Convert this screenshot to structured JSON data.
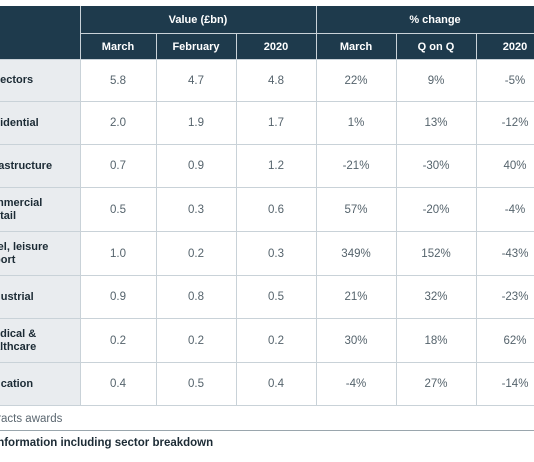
{
  "table": {
    "group_headers": {
      "value": "Value (£bn)",
      "change": "% change"
    },
    "sub_headers": [
      "March",
      "February",
      "2020",
      "March",
      "Q on Q",
      "2020"
    ],
    "rows": [
      {
        "sector": "sectors",
        "cells": [
          "5.8",
          "4.7",
          "4.8",
          "22%",
          "9%",
          "-5%"
        ]
      },
      {
        "sector": "sidential",
        "cells": [
          "2.0",
          "1.9",
          "1.7",
          "1%",
          "13%",
          "-12%"
        ]
      },
      {
        "sector": "rastructure",
        "cells": [
          "0.7",
          "0.9",
          "1.2",
          "-21%",
          "-30%",
          "40%"
        ]
      },
      {
        "sector": "mmercial\netail",
        "cells": [
          "0.5",
          "0.3",
          "0.6",
          "57%",
          "-20%",
          "-4%"
        ]
      },
      {
        "sector": "tel, leisure\nport",
        "cells": [
          "1.0",
          "0.2",
          "0.3",
          "349%",
          "152%",
          "-43%"
        ]
      },
      {
        "sector": "dustrial",
        "cells": [
          "0.9",
          "0.8",
          "0.5",
          "21%",
          "32%",
          "-23%"
        ]
      },
      {
        "sector": "edical &\nalthcare",
        "cells": [
          "0.2",
          "0.2",
          "0.2",
          "30%",
          "18%",
          "62%"
        ]
      },
      {
        "sector": "ucation",
        "cells": [
          "0.4",
          "0.5",
          "0.4",
          "-4%",
          "27%",
          "-14%"
        ]
      }
    ]
  },
  "footer": {
    "note": "tracts awards",
    "link": "information including sector breakdown"
  }
}
